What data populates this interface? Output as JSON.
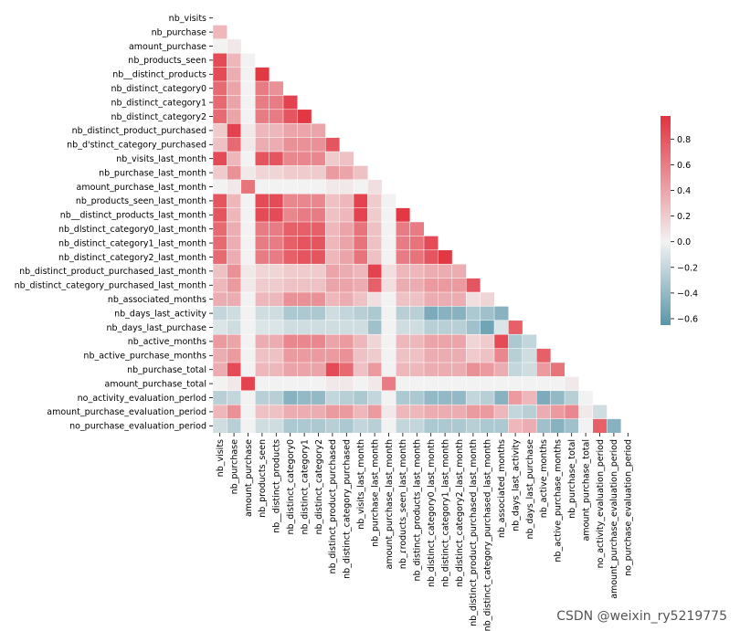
{
  "chart_data": {
    "type": "heatmap",
    "title": "",
    "xlabel": "",
    "ylabel": "",
    "mask": "upper-triangle",
    "labels": [
      "nb_visits",
      "nb_purchase",
      "amount_purchase",
      "nb_products_seen",
      "nb__distinct_products",
      "nb_distinct_category0",
      "nb_distinct_category1",
      "nb_distinct_category2",
      "nb_distinct_product_purchased",
      "nb_d'stinct_category_purchased",
      "nb_visits_last_month",
      "nb_purchase_last_month",
      "amount_purchase_last_month",
      "nb_products_seen_last_month",
      "nb__distinct_products_last_month",
      "nb_dlstinct_category0_last_month",
      "nb_distinct_category1_last_month",
      "nb_distinct_category2_last_month",
      "nb_distinct_product_purchased_last_month",
      "nb_distinct_category_purchased_last_month",
      "nb_associated_months",
      "nb_days_last_activity",
      "nb_days_last_purchase",
      "nb_active_months",
      "nb_active_purchase_months",
      "nb_purchase_total",
      "amount_purchase_total",
      "no_activity_evaluation_perlod",
      "amount_purchase_evaluation_period",
      "no_purchase_evaluation_period"
    ],
    "x_tick_labels": [
      "nb_visits",
      "nb_purchase",
      "amount_purchase",
      "nb_products_seen",
      "nb__distinct_products",
      "nb_distinct_category0",
      "nb_distinct_category1",
      "nb_distinct_category2",
      "nb_distinct_product_purchased",
      "nb_distinct_category_purchased",
      "nb_visits_last_month",
      "nb_purchase_last_month",
      "amount_purchase_last_month",
      "nb_ɾroducts_seen_last_month",
      "nb_distinct_products_last_month",
      "nb_distinct_category0_last_month",
      "nb_distinct_category1_last_month",
      "nb_distinct_category2_last_month",
      "nb_distinct_product_purchased_last_month",
      "nb_distinct_category_purchased_last_month",
      "nb_associated_months",
      "nb_days_last_activity",
      "nb_days_last_purchase",
      "nb_active_months",
      "nb_active_purchase_months",
      "nb_purchase_total",
      "amount_purchase_total",
      "no_activity_evaluation_period",
      "amount_purchase_evaluation_period",
      "no_purchase_evaluation_period"
    ],
    "values": [
      [],
      [
        0.3
      ],
      [
        0.0,
        0.05
      ],
      [
        0.85,
        0.3,
        0.0
      ],
      [
        0.85,
        0.35,
        0.0,
        0.95
      ],
      [
        0.7,
        0.4,
        0.0,
        0.6,
        0.5
      ],
      [
        0.7,
        0.4,
        0.0,
        0.6,
        0.6,
        0.9
      ],
      [
        0.7,
        0.4,
        0.0,
        0.6,
        0.6,
        0.8,
        0.95
      ],
      [
        0.2,
        0.9,
        0.05,
        0.3,
        0.3,
        0.4,
        0.4,
        0.4
      ],
      [
        0.25,
        0.7,
        0.05,
        0.35,
        0.35,
        0.5,
        0.5,
        0.5,
        0.8
      ],
      [
        0.85,
        0.3,
        0.0,
        0.8,
        0.8,
        0.55,
        0.55,
        0.55,
        0.2,
        0.25
      ],
      [
        0.2,
        0.5,
        0.05,
        0.15,
        0.15,
        0.2,
        0.2,
        0.2,
        0.45,
        0.4,
        0.25
      ],
      [
        0.0,
        0.05,
        0.65,
        0.0,
        0.0,
        0.0,
        0.0,
        0.0,
        0.05,
        0.05,
        0.0,
        0.1
      ],
      [
        0.8,
        0.3,
        0.0,
        0.85,
        0.85,
        0.55,
        0.55,
        0.55,
        0.25,
        0.3,
        0.9,
        0.2,
        0.0
      ],
      [
        0.8,
        0.3,
        0.0,
        0.85,
        0.85,
        0.55,
        0.6,
        0.6,
        0.25,
        0.3,
        0.9,
        0.2,
        0.0,
        0.95
      ],
      [
        0.7,
        0.35,
        0.0,
        0.6,
        0.6,
        0.75,
        0.75,
        0.75,
        0.3,
        0.4,
        0.65,
        0.25,
        0.0,
        0.6,
        0.6
      ],
      [
        0.7,
        0.35,
        0.0,
        0.6,
        0.6,
        0.75,
        0.8,
        0.8,
        0.3,
        0.4,
        0.65,
        0.25,
        0.0,
        0.6,
        0.65,
        0.85
      ],
      [
        0.7,
        0.35,
        0.0,
        0.6,
        0.6,
        0.75,
        0.8,
        0.8,
        0.3,
        0.4,
        0.65,
        0.25,
        0.0,
        0.6,
        0.65,
        0.8,
        0.95
      ],
      [
        0.25,
        0.5,
        0.05,
        0.15,
        0.15,
        0.2,
        0.2,
        0.2,
        0.4,
        0.35,
        0.3,
        0.9,
        0.1,
        0.3,
        0.3,
        0.35,
        0.35,
        0.35
      ],
      [
        0.3,
        0.45,
        0.05,
        0.2,
        0.2,
        0.25,
        0.25,
        0.25,
        0.4,
        0.4,
        0.35,
        0.75,
        0.1,
        0.35,
        0.35,
        0.45,
        0.45,
        0.45,
        0.8
      ],
      [
        0.35,
        0.35,
        0.0,
        0.3,
        0.3,
        0.5,
        0.5,
        0.5,
        0.3,
        0.35,
        0.25,
        0.1,
        0.0,
        0.25,
        0.25,
        0.35,
        0.35,
        0.35,
        0.1,
        0.15
      ],
      [
        -0.2,
        -0.15,
        0.0,
        -0.15,
        -0.15,
        -0.3,
        -0.3,
        -0.3,
        -0.15,
        -0.2,
        -0.25,
        -0.3,
        0.0,
        -0.25,
        -0.25,
        -0.5,
        -0.45,
        -0.45,
        -0.3,
        -0.35,
        -0.45
      ],
      [
        -0.1,
        -0.15,
        0.0,
        -0.1,
        -0.1,
        -0.15,
        -0.15,
        -0.15,
        -0.15,
        -0.15,
        -0.15,
        -0.35,
        0.0,
        -0.15,
        -0.15,
        -0.25,
        -0.25,
        -0.25,
        -0.35,
        -0.55,
        -0.1,
        0.75
      ],
      [
        0.45,
        0.4,
        0.0,
        0.35,
        0.35,
        0.55,
        0.55,
        0.55,
        0.4,
        0.45,
        0.3,
        0.15,
        0.0,
        0.3,
        0.3,
        0.4,
        0.4,
        0.4,
        0.15,
        0.2,
        0.85,
        -0.3,
        -0.2
      ],
      [
        0.35,
        0.45,
        0.0,
        0.25,
        0.25,
        0.45,
        0.45,
        0.45,
        0.45,
        0.5,
        0.25,
        0.2,
        0.0,
        0.25,
        0.25,
        0.35,
        0.35,
        0.35,
        0.2,
        0.25,
        0.55,
        -0.25,
        -0.15,
        0.75
      ],
      [
        0.35,
        0.85,
        0.0,
        0.3,
        0.3,
        0.4,
        0.4,
        0.4,
        0.85,
        0.7,
        0.25,
        0.45,
        0.0,
        0.3,
        0.3,
        0.35,
        0.35,
        0.35,
        0.5,
        0.45,
        0.35,
        -0.2,
        -0.15,
        0.45,
        0.65
      ],
      [
        0.0,
        0.05,
        0.9,
        0.0,
        0.0,
        0.0,
        0.0,
        0.0,
        0.05,
        0.05,
        0.0,
        0.05,
        0.6,
        0.0,
        0.0,
        0.0,
        0.0,
        0.0,
        0.0,
        0.0,
        0.0,
        0.0,
        0.0,
        0.0,
        0.0,
        0.05
      ],
      [
        -0.25,
        -0.2,
        0.0,
        -0.25,
        -0.25,
        -0.45,
        -0.4,
        -0.4,
        -0.2,
        -0.25,
        -0.3,
        -0.2,
        0.0,
        -0.3,
        -0.3,
        -0.4,
        -0.4,
        -0.4,
        -0.2,
        -0.25,
        -0.45,
        0.45,
        0.3,
        -0.5,
        -0.4,
        -0.25,
        0.0
      ],
      [
        0.3,
        0.5,
        0.0,
        0.25,
        0.25,
        0.35,
        0.35,
        0.35,
        0.45,
        0.45,
        0.3,
        0.45,
        0.05,
        0.3,
        0.3,
        0.35,
        0.35,
        0.35,
        0.45,
        0.45,
        0.3,
        -0.2,
        -0.25,
        0.35,
        0.45,
        0.55,
        0.05,
        -0.15
      ],
      [
        -0.15,
        -0.25,
        0.0,
        -0.15,
        -0.15,
        -0.3,
        -0.3,
        -0.3,
        -0.25,
        -0.3,
        -0.2,
        -0.25,
        0.0,
        -0.2,
        -0.2,
        -0.3,
        -0.3,
        -0.3,
        -0.25,
        -0.3,
        -0.3,
        0.3,
        0.35,
        -0.35,
        -0.45,
        -0.35,
        0.0,
        0.75,
        -0.45
      ]
    ],
    "colorbar": {
      "vmin": -0.65,
      "vmax": 0.98,
      "ticks": [
        -0.6,
        -0.4,
        -0.2,
        0.0,
        0.2,
        0.4,
        0.6,
        0.8
      ],
      "tick_labels": [
        "−0.6",
        "−0.4",
        "−0.2",
        "0.0",
        "0.2",
        "0.4",
        "0.6",
        "0.8"
      ],
      "low_color": "#5a96aa",
      "mid_color": "#f2f2f2",
      "high_color": "#e2323f"
    },
    "grid": false,
    "legend": "colorbar-right"
  },
  "watermark": "CSDN @weixin_ry5219775"
}
